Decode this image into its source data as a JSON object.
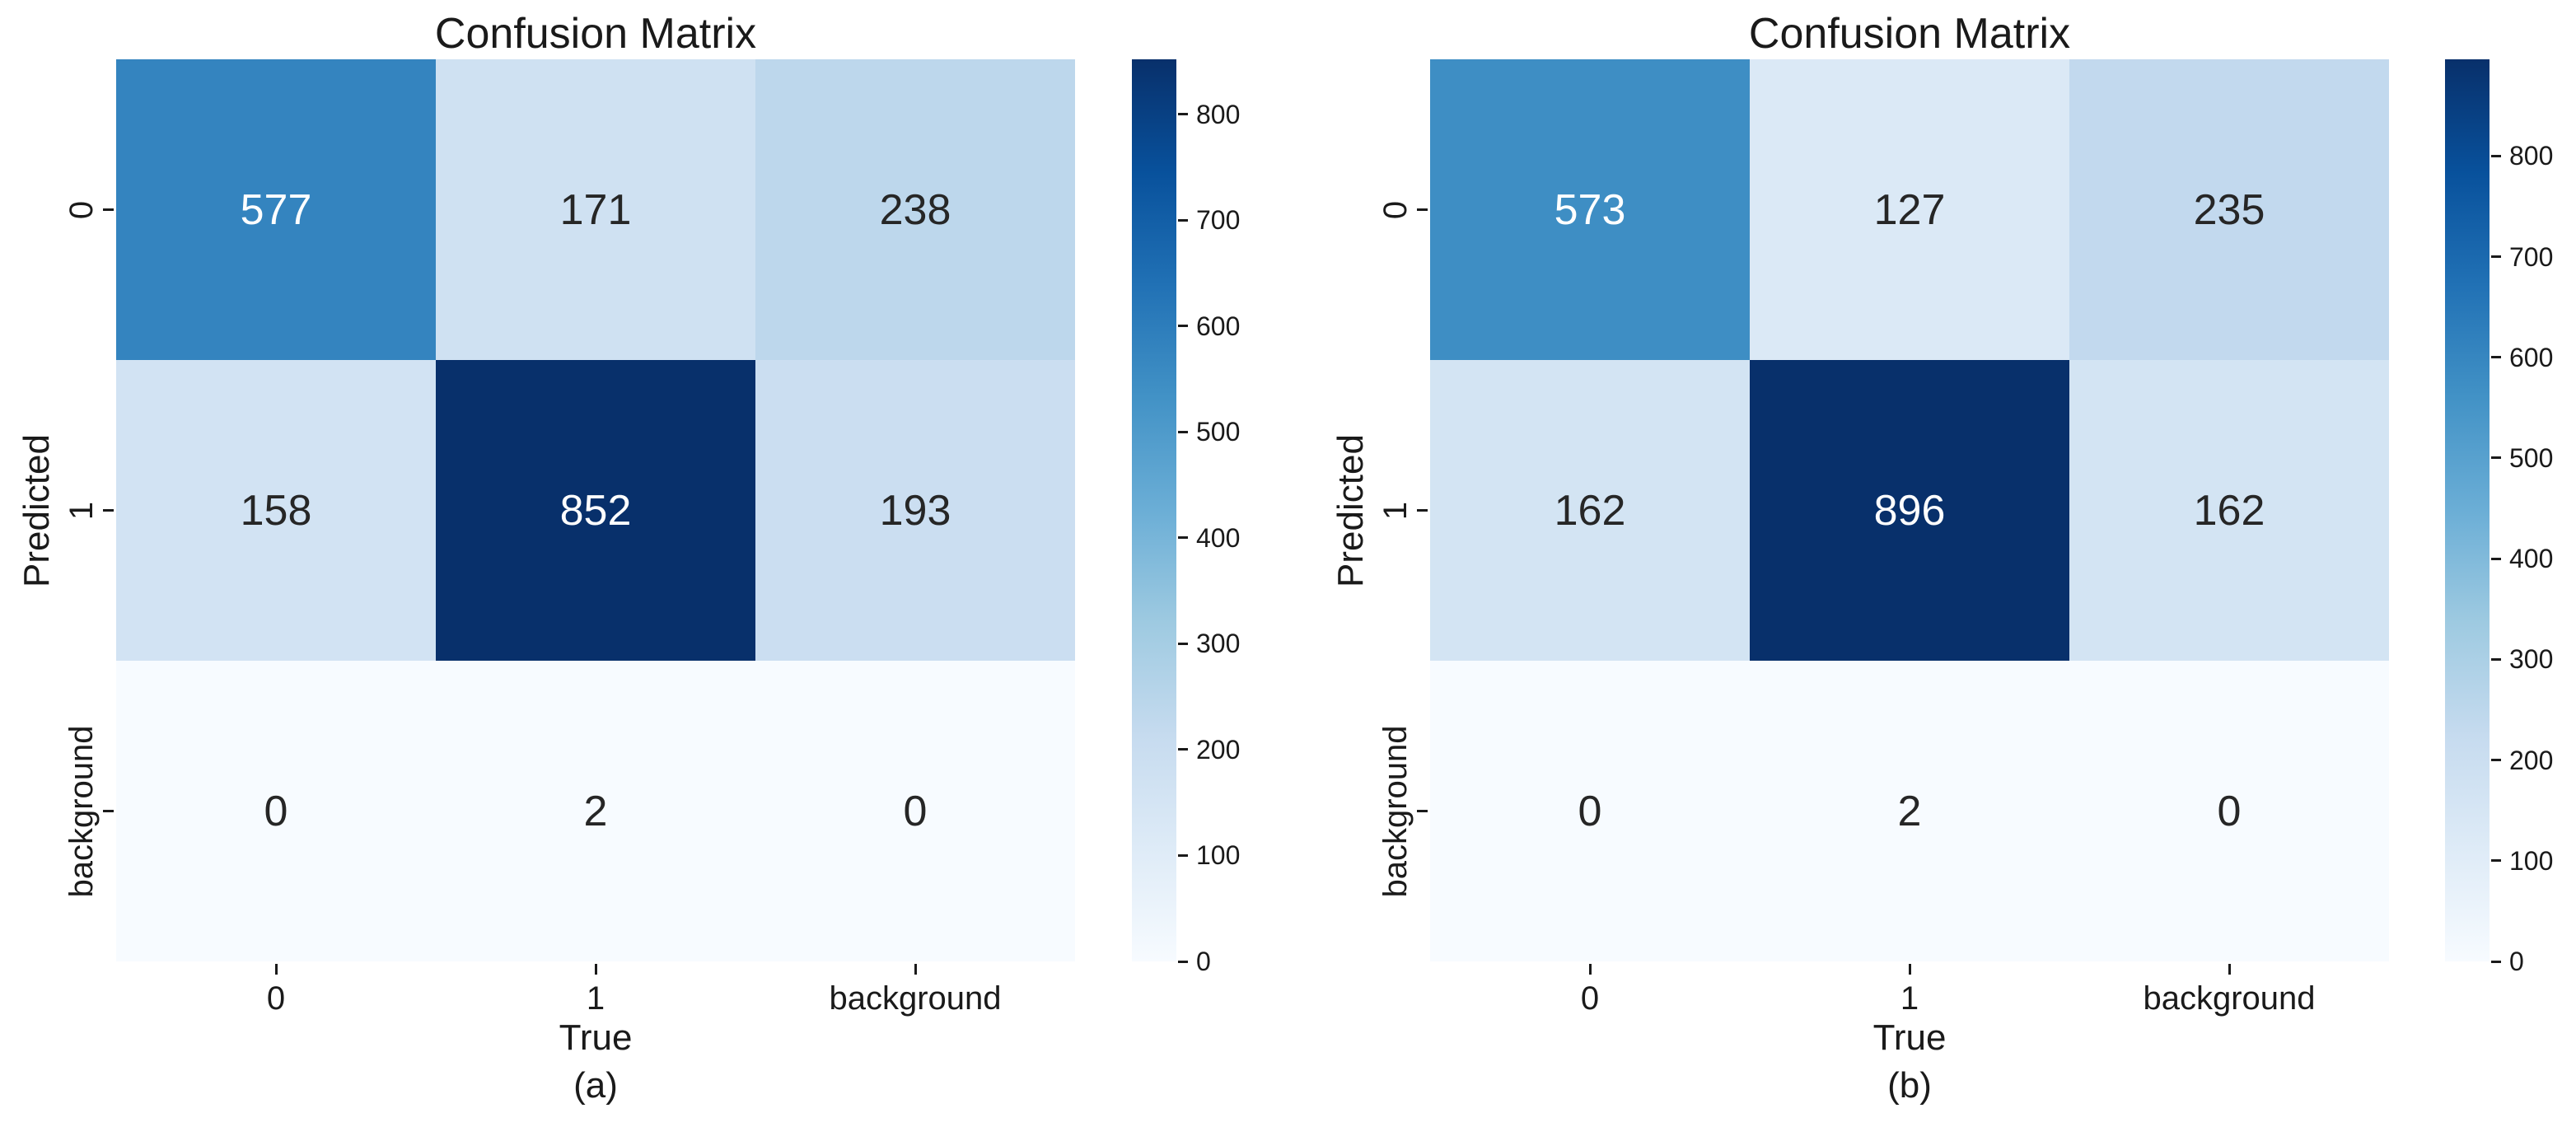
{
  "figure": {
    "background": "#ffffff"
  },
  "colors": {
    "text": "#1a1a1a",
    "annot_dark": "#262626",
    "annot_light": "#ffffff",
    "colormap": "Blues",
    "blues_anchors": [
      "#f7fbff",
      "#deebf7",
      "#c6dbef",
      "#9ecae1",
      "#6baed6",
      "#4292c6",
      "#2171b5",
      "#08519c",
      "#08306b"
    ]
  },
  "chart_data": [
    {
      "type": "heatmap",
      "title": "Confusion Matrix",
      "xlabel": "True",
      "ylabel": "Predicted",
      "caption": "(a)",
      "x_categories": [
        "0",
        "1",
        "background"
      ],
      "y_categories": [
        "0",
        "1",
        "background"
      ],
      "matrix": [
        [
          577,
          171,
          238
        ],
        [
          158,
          852,
          193
        ],
        [
          0,
          2,
          0
        ]
      ],
      "vmin": 0,
      "vmax": 852,
      "colorbar_ticks": [
        0,
        100,
        200,
        300,
        400,
        500,
        600,
        700,
        800
      ],
      "colormap": "Blues",
      "legend_position": "right-colorbar",
      "grid": false
    },
    {
      "type": "heatmap",
      "title": "Confusion Matrix",
      "xlabel": "True",
      "ylabel": "Predicted",
      "caption": "(b)",
      "x_categories": [
        "0",
        "1",
        "background"
      ],
      "y_categories": [
        "0",
        "1",
        "background"
      ],
      "matrix": [
        [
          573,
          127,
          235
        ],
        [
          162,
          896,
          162
        ],
        [
          0,
          2,
          0
        ]
      ],
      "vmin": 0,
      "vmax": 896,
      "colorbar_ticks": [
        0,
        100,
        200,
        300,
        400,
        500,
        600,
        700,
        800
      ],
      "colormap": "Blues",
      "legend_position": "right-colorbar",
      "grid": false
    }
  ]
}
